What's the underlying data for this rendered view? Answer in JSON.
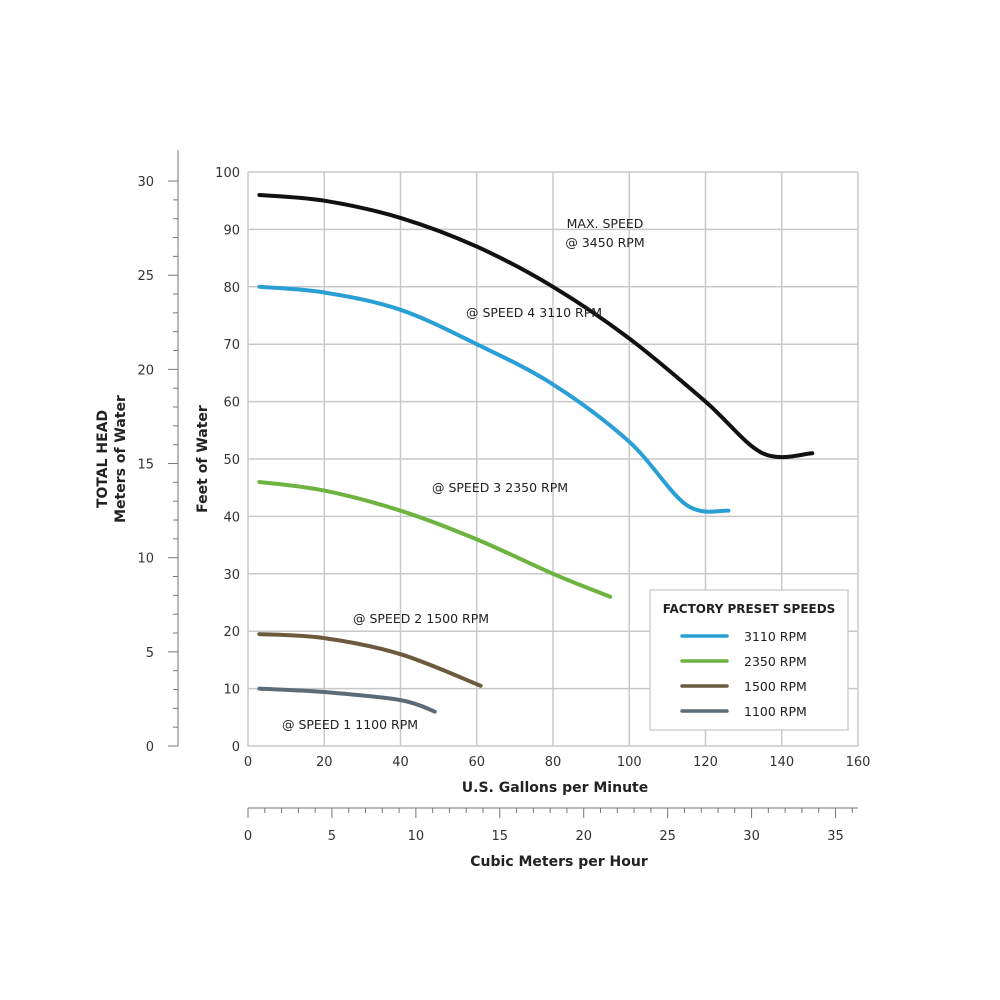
{
  "chart_data": {
    "type": "line",
    "x_axis": {
      "label": "U.S. Gallons per Minute",
      "range": [
        0,
        160
      ],
      "ticks": [
        0,
        20,
        40,
        60,
        80,
        100,
        120,
        140,
        160
      ]
    },
    "x2_axis": {
      "label": "Cubic Meters per Hour",
      "range": [
        0,
        36.34
      ],
      "ticks": [
        0,
        5,
        10,
        15,
        20,
        25,
        30,
        35
      ]
    },
    "y_axis": {
      "label": "Feet of Water",
      "range": [
        0,
        100
      ],
      "ticks": [
        0,
        10,
        20,
        30,
        40,
        50,
        60,
        70,
        80,
        90,
        100
      ]
    },
    "y2_axis": {
      "label_line1": "TOTAL HEAD",
      "label_line2": "Meters of Water",
      "range": [
        0,
        30.48
      ],
      "ticks": [
        0,
        5,
        10,
        15,
        20,
        25,
        30
      ]
    },
    "grid": true,
    "series": [
      {
        "name": "MAX. SPEED @ 3450 RPM",
        "color": "#111111",
        "label_line1": "MAX. SPEED",
        "label_line2": "@ 3450 RPM",
        "x": [
          3,
          20,
          40,
          60,
          80,
          100,
          120,
          135,
          148
        ],
        "y": [
          96,
          95,
          92,
          87,
          80,
          71,
          60,
          51,
          51
        ]
      },
      {
        "name": "3110 RPM",
        "color": "#2a9fd6",
        "label_line1": "@ SPEED 4 3110 RPM",
        "x": [
          3,
          20,
          40,
          60,
          80,
          100,
          115,
          126
        ],
        "y": [
          80,
          79,
          76,
          70,
          63,
          53,
          42,
          41
        ]
      },
      {
        "name": "2350 RPM",
        "color": "#6db33f",
        "label_line1": "@ SPEED 3 2350 RPM",
        "x": [
          3,
          20,
          40,
          60,
          80,
          95
        ],
        "y": [
          46,
          44.5,
          41,
          36,
          30,
          26
        ]
      },
      {
        "name": "1500 RPM",
        "color": "#6b5a3e",
        "label_line1": "@ SPEED 2 1500 RPM",
        "x": [
          3,
          20,
          40,
          61
        ],
        "y": [
          19.5,
          18.8,
          16,
          10.5
        ]
      },
      {
        "name": "1100 RPM",
        "color": "#5b6b78",
        "label_line1": "@ SPEED 1 1100 RPM",
        "x": [
          3,
          20,
          40,
          49
        ],
        "y": [
          10,
          9.4,
          8,
          6
        ]
      }
    ],
    "legend": {
      "title": "FACTORY PRESET SPEEDS",
      "position": "bottom-right",
      "entries": [
        {
          "label": "3110 RPM",
          "color": "#2a9fd6"
        },
        {
          "label": "2350 RPM",
          "color": "#6db33f"
        },
        {
          "label": "1500 RPM",
          "color": "#6b5a3e"
        },
        {
          "label": "1100 RPM",
          "color": "#5b6b78"
        }
      ]
    }
  }
}
